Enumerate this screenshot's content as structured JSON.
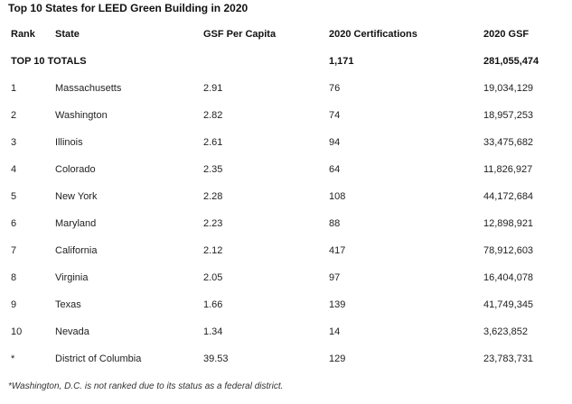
{
  "title": "Top 10 States for LEED Green Building in 2020",
  "table": {
    "headers": {
      "rank": "Rank",
      "state": "State",
      "gsf_per_capita": "GSF Per Capita",
      "certifications": "2020 Certifications",
      "gsf": "2020 GSF"
    },
    "totals": {
      "label": "TOP 10 TOTALS",
      "certifications": "1,171",
      "gsf": "281,055,474"
    },
    "rows": [
      {
        "rank": "1",
        "state": "Massachusetts",
        "gsf_per_capita": "2.91",
        "certifications": "76",
        "gsf": "19,034,129"
      },
      {
        "rank": "2",
        "state": "Washington",
        "gsf_per_capita": "2.82",
        "certifications": "74",
        "gsf": "18,957,253"
      },
      {
        "rank": "3",
        "state": "Illinois",
        "gsf_per_capita": "2.61",
        "certifications": "94",
        "gsf": "33,475,682"
      },
      {
        "rank": "4",
        "state": "Colorado",
        "gsf_per_capita": "2.35",
        "certifications": "64",
        "gsf": "11,826,927"
      },
      {
        "rank": "5",
        "state": "New York",
        "gsf_per_capita": "2.28",
        "certifications": "108",
        "gsf": "44,172,684"
      },
      {
        "rank": "6",
        "state": "Maryland",
        "gsf_per_capita": "2.23",
        "certifications": "88",
        "gsf": "12,898,921"
      },
      {
        "rank": "7",
        "state": "California",
        "gsf_per_capita": "2.12",
        "certifications": "417",
        "gsf": "78,912,603"
      },
      {
        "rank": "8",
        "state": "Virginia",
        "gsf_per_capita": "2.05",
        "certifications": "97",
        "gsf": "16,404,078"
      },
      {
        "rank": "9",
        "state": "Texas",
        "gsf_per_capita": "1.66",
        "certifications": "139",
        "gsf": "41,749,345"
      },
      {
        "rank": "10",
        "state": "Nevada",
        "gsf_per_capita": "1.34",
        "certifications": "14",
        "gsf": "3,623,852"
      },
      {
        "rank": "*",
        "state": "District of Columbia",
        "gsf_per_capita": "39.53",
        "certifications": "129",
        "gsf": "23,783,731"
      }
    ]
  },
  "footnote": "*Washington, D.C. is not ranked due to its status as a federal district."
}
